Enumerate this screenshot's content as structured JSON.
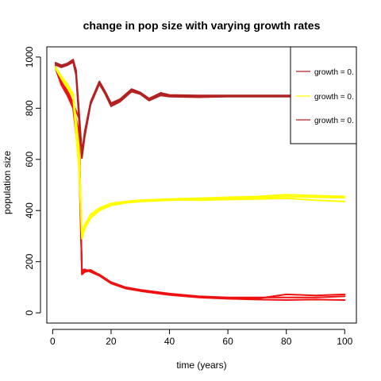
{
  "chart_data": {
    "type": "line",
    "title": "change in pop size with varying growth rates",
    "xlabel": "time (years)",
    "ylabel": "population size",
    "xlim": [
      -2,
      104
    ],
    "ylim": [
      -40,
      1040
    ],
    "xticks": [
      0,
      20,
      40,
      60,
      80,
      100
    ],
    "yticks": [
      0,
      200,
      400,
      600,
      800,
      1000
    ],
    "grid": false,
    "legend_position": "top-right",
    "legend": [
      {
        "label": "growth = 0.",
        "color": "#b22222"
      },
      {
        "label": "growth = 0.",
        "color": "#ffff00"
      },
      {
        "label": "growth = 0.",
        "color": "#b22222"
      }
    ],
    "series": [
      {
        "color": "#ee1111",
        "x": [
          1,
          3,
          5,
          7,
          9,
          10,
          11,
          13,
          16,
          20,
          25,
          30,
          40,
          50,
          60,
          70,
          80,
          90,
          100
        ],
        "y": [
          960,
          900,
          870,
          820,
          760,
          150,
          160,
          165,
          150,
          120,
          100,
          90,
          75,
          65,
          60,
          60,
          60,
          60,
          65
        ]
      },
      {
        "color": "#ee1111",
        "x": [
          1,
          3,
          5,
          7,
          9,
          10,
          11,
          13,
          16,
          20,
          25,
          30,
          40,
          50,
          60,
          70,
          80,
          90,
          100
        ],
        "y": [
          955,
          890,
          850,
          800,
          600,
          165,
          170,
          160,
          145,
          115,
          95,
          85,
          70,
          60,
          55,
          52,
          50,
          52,
          50
        ]
      },
      {
        "color": "#ee1111",
        "x": [
          1,
          3,
          5,
          7,
          9,
          10,
          11,
          13,
          16,
          20,
          25,
          30,
          40,
          50,
          60,
          70,
          80,
          90,
          100
        ],
        "y": [
          965,
          905,
          860,
          815,
          700,
          155,
          165,
          168,
          148,
          118,
          98,
          88,
          72,
          62,
          58,
          56,
          72,
          68,
          72
        ]
      },
      {
        "color": "#ffff00",
        "x": [
          1,
          3,
          5,
          7,
          9,
          10,
          11,
          13,
          16,
          20,
          25,
          30,
          40,
          50,
          60,
          70,
          80,
          90,
          100
        ],
        "y": [
          960,
          920,
          890,
          850,
          600,
          290,
          330,
          370,
          400,
          420,
          430,
          435,
          440,
          445,
          448,
          450,
          455,
          452,
          450
        ]
      },
      {
        "color": "#ffff00",
        "x": [
          1,
          3,
          5,
          7,
          9,
          10,
          11,
          13,
          16,
          20,
          25,
          30,
          40,
          50,
          60,
          70,
          80,
          90,
          100
        ],
        "y": [
          955,
          915,
          880,
          840,
          560,
          300,
          340,
          380,
          405,
          425,
          432,
          437,
          442,
          440,
          443,
          445,
          448,
          440,
          435
        ]
      },
      {
        "color": "#ffff00",
        "x": [
          1,
          3,
          5,
          7,
          9,
          10,
          11,
          13,
          16,
          20,
          25,
          30,
          40,
          50,
          60,
          70,
          80,
          90,
          100
        ],
        "y": [
          962,
          925,
          895,
          855,
          650,
          310,
          345,
          385,
          410,
          428,
          435,
          440,
          445,
          448,
          452,
          455,
          462,
          458,
          455
        ]
      },
      {
        "color": "#b22222",
        "x": [
          1,
          3,
          5,
          7,
          8,
          9,
          10,
          11,
          13,
          16,
          18,
          20,
          23,
          27,
          30,
          33,
          37,
          40,
          50,
          60,
          70,
          80,
          90,
          100
        ],
        "y": [
          975,
          965,
          972,
          985,
          940,
          780,
          615,
          700,
          820,
          900,
          860,
          815,
          830,
          870,
          860,
          835,
          855,
          850,
          848,
          848,
          848,
          848,
          848,
          848
        ]
      },
      {
        "color": "#b22222",
        "x": [
          1,
          3,
          5,
          7,
          8,
          9,
          10,
          11,
          13,
          16,
          18,
          20,
          23,
          27,
          30,
          33,
          37,
          40,
          50,
          60,
          70,
          80,
          90,
          100
        ],
        "y": [
          970,
          960,
          968,
          980,
          930,
          760,
          605,
          690,
          815,
          895,
          855,
          808,
          825,
          865,
          855,
          830,
          850,
          845,
          843,
          845,
          845,
          845,
          845,
          845
        ]
      },
      {
        "color": "#b22222",
        "x": [
          1,
          3,
          5,
          7,
          8,
          9,
          10,
          11,
          13,
          16,
          18,
          20,
          23,
          27,
          30,
          33,
          37,
          40,
          50,
          60,
          70,
          80,
          90,
          100
        ],
        "y": [
          978,
          968,
          975,
          990,
          950,
          790,
          625,
          710,
          825,
          905,
          865,
          820,
          835,
          875,
          862,
          838,
          860,
          852,
          850,
          850,
          850,
          850,
          850,
          850
        ]
      }
    ]
  }
}
